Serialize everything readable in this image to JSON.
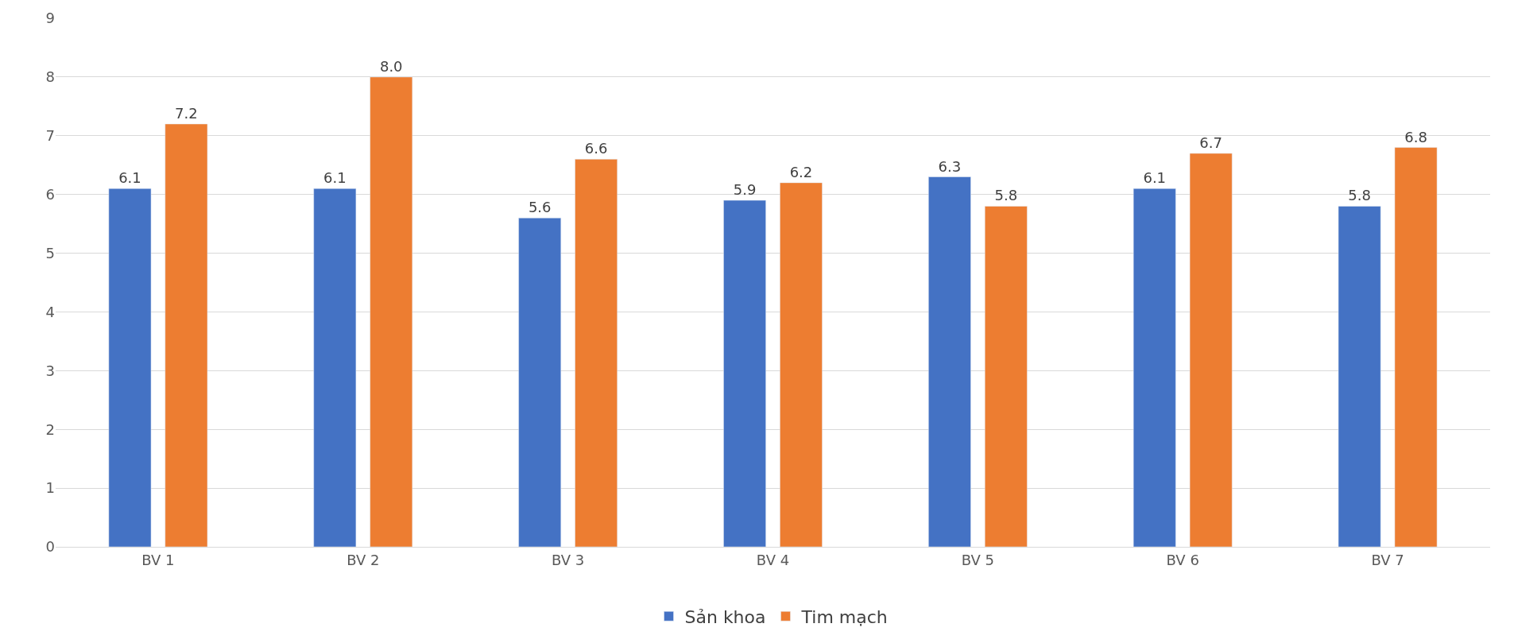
{
  "chart_data": {
    "type": "bar",
    "categories": [
      "BV 1",
      "BV 2",
      "BV 3",
      "BV 4",
      "BV 5",
      "BV 6",
      "BV 7"
    ],
    "series": [
      {
        "name": "Sản khoa",
        "color": "#4472c4",
        "values": [
          6.1,
          6.1,
          5.6,
          5.9,
          6.3,
          6.1,
          5.8
        ],
        "value_labels": [
          "6.1",
          "6.1",
          "5.6",
          "5.9",
          "6.3",
          "6.1",
          "5.8"
        ]
      },
      {
        "name": "Tim mạch",
        "color": "#ed7d31",
        "values": [
          7.2,
          8,
          6.6,
          6.2,
          5.8,
          6.7,
          6.8
        ],
        "value_labels": [
          "7.2",
          "8.0",
          "6.6",
          "6.2",
          "5.8",
          "6.7",
          "6.8"
        ]
      }
    ],
    "ylim": [
      0,
      9
    ],
    "yticks": [
      0,
      1,
      2,
      3,
      4,
      5,
      6,
      7,
      8,
      9
    ],
    "grid": "y",
    "legend": "bottom"
  }
}
